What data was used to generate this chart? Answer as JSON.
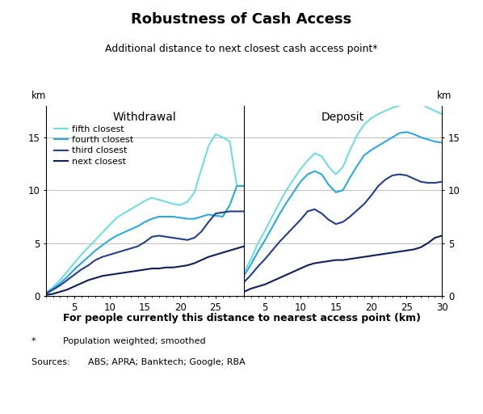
{
  "title": "Robustness of Cash Access",
  "subtitle": "Additional distance to next closest cash access point*",
  "xlabel": "For people currently this distance to nearest access point (km)",
  "footnote1": "*   Population weighted; smoothed",
  "footnote2": "Sources:  ABS; APRA; Banktech; Google; RBA",
  "ylabel_left": "km",
  "ylabel_right": "km",
  "panel_labels": [
    "Withdrawal",
    "Deposit"
  ],
  "legend_labels": [
    "fifth closest",
    "fourth closest",
    "third closest",
    "next closest"
  ],
  "colors": [
    "#6FDFDF",
    "#29ABE2",
    "#243F8F",
    "#0D1F5C"
  ],
  "ylim": [
    0,
    18
  ],
  "yticks": [
    0,
    5,
    10,
    15
  ],
  "withdrawal_x": [
    1,
    2,
    3,
    4,
    5,
    6,
    7,
    8,
    9,
    10,
    11,
    12,
    13,
    14,
    15,
    16,
    17,
    18,
    19,
    20,
    21,
    22,
    23,
    24,
    25,
    26,
    27,
    28,
    29
  ],
  "withdrawal_fifth": [
    0.3,
    0.8,
    1.5,
    2.3,
    3.1,
    3.9,
    4.6,
    5.3,
    6.0,
    6.7,
    7.4,
    7.8,
    8.2,
    8.6,
    9.0,
    9.3,
    9.1,
    8.9,
    8.7,
    8.6,
    8.9,
    9.8,
    12.0,
    14.2,
    15.3,
    15.0,
    14.6,
    10.4,
    10.4
  ],
  "withdrawal_fourth": [
    0.3,
    0.7,
    1.2,
    1.8,
    2.5,
    3.1,
    3.7,
    4.3,
    4.8,
    5.3,
    5.7,
    6.0,
    6.3,
    6.6,
    7.0,
    7.3,
    7.5,
    7.5,
    7.5,
    7.4,
    7.3,
    7.3,
    7.5,
    7.7,
    7.6,
    7.5,
    8.6,
    10.4,
    10.4
  ],
  "withdrawal_third": [
    0.2,
    0.6,
    1.0,
    1.5,
    2.0,
    2.5,
    2.9,
    3.4,
    3.7,
    3.9,
    4.1,
    4.3,
    4.5,
    4.7,
    5.1,
    5.6,
    5.7,
    5.6,
    5.5,
    5.4,
    5.3,
    5.5,
    6.1,
    7.0,
    7.8,
    7.9,
    8.0,
    8.0,
    8.0
  ],
  "withdrawal_next": [
    0.1,
    0.2,
    0.4,
    0.6,
    0.9,
    1.2,
    1.5,
    1.7,
    1.9,
    2.0,
    2.1,
    2.2,
    2.3,
    2.4,
    2.5,
    2.6,
    2.6,
    2.7,
    2.7,
    2.8,
    2.9,
    3.1,
    3.4,
    3.7,
    3.9,
    4.1,
    4.3,
    4.5,
    4.7
  ],
  "deposit_x": [
    2,
    3,
    4,
    5,
    6,
    7,
    8,
    9,
    10,
    11,
    12,
    13,
    14,
    15,
    16,
    17,
    18,
    19,
    20,
    21,
    22,
    23,
    24,
    25,
    26,
    27,
    28,
    29,
    30
  ],
  "deposit_fifth": [
    2.2,
    3.5,
    5.0,
    6.2,
    7.5,
    8.8,
    10.0,
    11.0,
    12.0,
    12.8,
    13.5,
    13.2,
    12.2,
    11.5,
    12.2,
    13.8,
    15.2,
    16.2,
    16.8,
    17.2,
    17.5,
    17.8,
    18.0,
    18.2,
    18.4,
    18.2,
    17.8,
    17.5,
    17.2
  ],
  "deposit_fourth": [
    1.9,
    3.0,
    4.2,
    5.3,
    6.5,
    7.7,
    8.8,
    9.8,
    10.8,
    11.5,
    11.8,
    11.5,
    10.5,
    9.8,
    10.0,
    11.2,
    12.3,
    13.3,
    13.8,
    14.2,
    14.6,
    15.0,
    15.4,
    15.5,
    15.3,
    15.0,
    14.8,
    14.6,
    14.5
  ],
  "deposit_third": [
    1.3,
    2.0,
    2.8,
    3.5,
    4.3,
    5.1,
    5.8,
    6.5,
    7.2,
    8.0,
    8.2,
    7.8,
    7.2,
    6.8,
    7.0,
    7.5,
    8.1,
    8.7,
    9.5,
    10.4,
    11.0,
    11.4,
    11.5,
    11.4,
    11.1,
    10.8,
    10.7,
    10.7,
    10.8
  ],
  "deposit_next": [
    0.4,
    0.7,
    0.9,
    1.1,
    1.4,
    1.7,
    2.0,
    2.3,
    2.6,
    2.9,
    3.1,
    3.2,
    3.3,
    3.4,
    3.4,
    3.5,
    3.6,
    3.7,
    3.8,
    3.9,
    4.0,
    4.1,
    4.2,
    4.3,
    4.4,
    4.6,
    5.0,
    5.5,
    5.7
  ]
}
